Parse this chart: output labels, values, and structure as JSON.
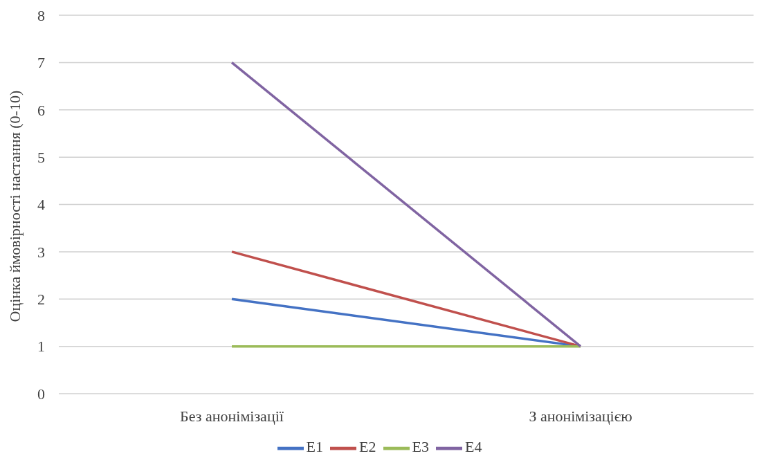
{
  "chart_data": {
    "type": "line",
    "ylabel": "Оцінка ймовірності настання (0-10)",
    "categories": [
      "Без анонімізації",
      "З анонімізацією"
    ],
    "series": [
      {
        "name": "E1",
        "color": "#4472c4",
        "values": [
          2,
          1
        ]
      },
      {
        "name": "E2",
        "color": "#c0504d",
        "values": [
          3,
          1
        ]
      },
      {
        "name": "E3",
        "color": "#9bbb59",
        "values": [
          1,
          1
        ]
      },
      {
        "name": "E4",
        "color": "#8064a2",
        "values": [
          7,
          1
        ]
      }
    ],
    "ylim": [
      0,
      8
    ],
    "yticks": [
      0,
      1,
      2,
      3,
      4,
      5,
      6,
      7,
      8
    ],
    "grid": "y",
    "legend": "bottom",
    "marker": "none",
    "line_style": "solid"
  }
}
